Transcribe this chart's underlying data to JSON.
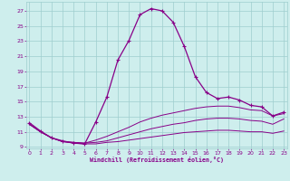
{
  "xlabel": "Windchill (Refroidissement éolien,°C)",
  "bg_color": "#ceeeed",
  "grid_color": "#9ecece",
  "line_color": "#880088",
  "x_ticks": [
    0,
    1,
    2,
    3,
    4,
    5,
    6,
    7,
    8,
    9,
    10,
    11,
    12,
    13,
    14,
    15,
    16,
    17,
    18,
    19,
    20,
    21,
    22,
    23
  ],
  "y_ticks": [
    9,
    11,
    13,
    15,
    17,
    19,
    21,
    23,
    25,
    27
  ],
  "ylim": [
    8.8,
    28.2
  ],
  "xlim": [
    -0.3,
    23.3
  ],
  "curve1_x": [
    0,
    1,
    2,
    3,
    4,
    5,
    6,
    7,
    8,
    9,
    10,
    11,
    12,
    13,
    14,
    15,
    16,
    17,
    18,
    19,
    20,
    21,
    22,
    23
  ],
  "curve1_y": [
    12.2,
    11.1,
    10.2,
    9.8,
    9.5,
    9.4,
    12.3,
    15.6,
    20.5,
    23.1,
    26.5,
    27.3,
    27.0,
    25.5,
    22.3,
    18.3,
    16.2,
    15.4,
    15.6,
    15.2,
    14.5,
    14.3,
    13.1,
    13.6
  ],
  "curve2_x": [
    0,
    1,
    2,
    3,
    4,
    5,
    6,
    7,
    8,
    9,
    10,
    11,
    12,
    13,
    14,
    15,
    16,
    17,
    18,
    19,
    20,
    21,
    22,
    23
  ],
  "curve2_y": [
    12.0,
    11.0,
    10.2,
    9.7,
    9.6,
    9.5,
    9.9,
    10.4,
    11.0,
    11.6,
    12.3,
    12.8,
    13.2,
    13.5,
    13.8,
    14.1,
    14.3,
    14.4,
    14.4,
    14.2,
    13.9,
    13.8,
    13.1,
    13.4
  ],
  "curve3_x": [
    0,
    1,
    2,
    3,
    4,
    5,
    6,
    7,
    8,
    9,
    10,
    11,
    12,
    13,
    14,
    15,
    16,
    17,
    18,
    19,
    20,
    21,
    22,
    23
  ],
  "curve3_y": [
    12.0,
    11.0,
    10.2,
    9.7,
    9.6,
    9.5,
    9.6,
    9.8,
    10.2,
    10.6,
    11.0,
    11.4,
    11.7,
    12.0,
    12.2,
    12.5,
    12.7,
    12.8,
    12.8,
    12.7,
    12.5,
    12.4,
    12.0,
    12.7
  ],
  "curve4_x": [
    0,
    1,
    2,
    3,
    4,
    5,
    6,
    7,
    8,
    9,
    10,
    11,
    12,
    13,
    14,
    15,
    16,
    17,
    18,
    19,
    20,
    21,
    22,
    23
  ],
  "curve4_y": [
    12.0,
    11.0,
    10.2,
    9.7,
    9.5,
    9.4,
    9.4,
    9.6,
    9.7,
    9.9,
    10.1,
    10.3,
    10.5,
    10.7,
    10.9,
    11.0,
    11.1,
    11.2,
    11.2,
    11.1,
    11.0,
    11.0,
    10.8,
    11.1
  ]
}
